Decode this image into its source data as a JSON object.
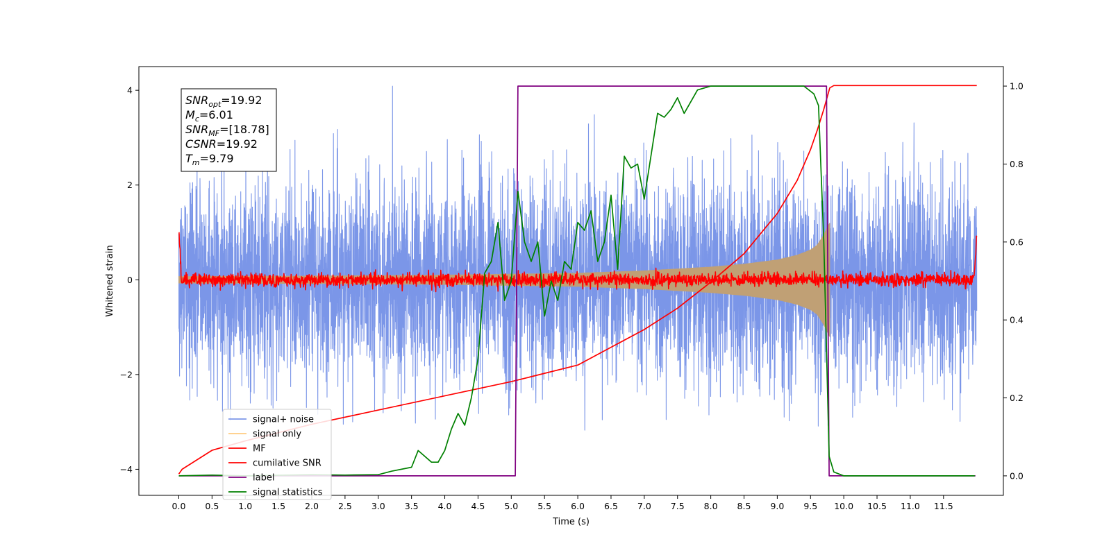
{
  "chart_data": {
    "type": "line",
    "title": "",
    "xlabel": "Time (s)",
    "ylabel": "Whitened strain",
    "xlim": [
      -0.6,
      12.4
    ],
    "ylim": [
      -4.55,
      4.5
    ],
    "y2lim": [
      -0.05,
      1.05
    ],
    "x_ticks": [
      "0.0",
      "0.5",
      "1.0",
      "1.5",
      "2.0",
      "2.5",
      "3.0",
      "3.5",
      "4.0",
      "4.5",
      "5.0",
      "5.5",
      "6.0",
      "6.5",
      "7.0",
      "7.5",
      "8.0",
      "8.5",
      "9.0",
      "9.5",
      "10.0",
      "10.5",
      "11.0",
      "11.5"
    ],
    "y_ticks": [
      -4,
      -2,
      0,
      2,
      4
    ],
    "y2_ticks": [
      "0.0",
      "0.2",
      "0.4",
      "0.6",
      "0.8",
      "1.0"
    ],
    "grid": false,
    "legend_position": "lower-left",
    "info_box": [
      {
        "sym": "SNR",
        "sub": "opt",
        "val": "=19.92"
      },
      {
        "sym": "M",
        "sub": "c",
        "val": "=6.01"
      },
      {
        "sym": "SNR",
        "sub": "MF",
        "val": "=[18.78]"
      },
      {
        "sym": "CSNR",
        "sub": "",
        "val": "=19.92"
      },
      {
        "sym": "T",
        "sub": "m",
        "val": "=9.79"
      }
    ],
    "series": [
      {
        "name": "signal+ noise",
        "color": "#7b96e8",
        "axis": "left",
        "kind": "noise",
        "t_start": 0.0,
        "t_end": 12.0,
        "envelope": [
          -3.2,
          4.1
        ]
      },
      {
        "name": "signal only",
        "color": "#c0a075",
        "legend_color": "#ffcc80",
        "axis": "left",
        "kind": "chirp",
        "t_start": 0.0,
        "t_merge": 9.79,
        "amplitude": {
          "t": [
            0.0,
            2.0,
            4.0,
            6.0,
            7.0,
            8.0,
            8.5,
            9.0,
            9.3,
            9.5,
            9.6,
            9.7,
            9.75,
            9.79
          ],
          "a": [
            0.07,
            0.08,
            0.1,
            0.14,
            0.19,
            0.27,
            0.33,
            0.42,
            0.52,
            0.63,
            0.73,
            0.95,
            1.1,
            1.2
          ]
        }
      },
      {
        "name": "MF",
        "color": "#ff0000",
        "axis": "left",
        "kind": "mf",
        "t_start": 0.0,
        "t_end": 12.0,
        "edge_value": 1.0,
        "noise_amplitude": 0.07
      },
      {
        "name": "cumilative SNR",
        "color": "#ff0000",
        "axis": "left",
        "x": [
          0.0,
          0.05,
          0.5,
          1.0,
          2.0,
          3.0,
          4.0,
          5.0,
          6.0,
          7.0,
          7.5,
          8.0,
          8.5,
          9.0,
          9.3,
          9.5,
          9.6,
          9.7,
          9.79,
          9.85,
          12.0
        ],
        "y": [
          -4.1,
          -4.0,
          -3.6,
          -3.4,
          -3.05,
          -2.75,
          -2.45,
          -2.15,
          -1.8,
          -1.05,
          -0.6,
          -0.05,
          0.55,
          1.4,
          2.1,
          2.75,
          3.15,
          3.6,
          4.05,
          4.1,
          4.1
        ]
      },
      {
        "name": "label",
        "color": "#800080",
        "axis": "right",
        "x": [
          0.0,
          5.06,
          5.1,
          9.74,
          9.78,
          11.98
        ],
        "y": [
          0.0,
          0.0,
          1.0,
          1.0,
          0.0,
          0.0
        ]
      },
      {
        "name": "signal statistics",
        "color": "#008000",
        "axis": "right",
        "x": [
          0.0,
          0.5,
          1.0,
          2.0,
          2.5,
          3.0,
          3.2,
          3.5,
          3.6,
          3.8,
          3.9,
          4.0,
          4.1,
          4.2,
          4.3,
          4.4,
          4.5,
          4.6,
          4.7,
          4.8,
          4.9,
          5.0,
          5.1,
          5.2,
          5.3,
          5.4,
          5.5,
          5.6,
          5.7,
          5.8,
          5.9,
          6.0,
          6.1,
          6.2,
          6.3,
          6.4,
          6.5,
          6.6,
          6.7,
          6.8,
          6.9,
          7.0,
          7.1,
          7.2,
          7.3,
          7.4,
          7.5,
          7.6,
          7.7,
          7.8,
          8.0,
          8.3,
          8.6,
          9.0,
          9.4,
          9.55,
          9.62,
          9.7,
          9.78,
          9.85,
          10.0,
          11.0,
          11.97
        ],
        "y": [
          0.0,
          0.002,
          0.0,
          0.003,
          0.002,
          0.003,
          0.012,
          0.022,
          0.065,
          0.035,
          0.035,
          0.065,
          0.12,
          0.16,
          0.13,
          0.2,
          0.3,
          0.52,
          0.55,
          0.65,
          0.45,
          0.5,
          0.73,
          0.6,
          0.55,
          0.6,
          0.41,
          0.5,
          0.45,
          0.55,
          0.53,
          0.65,
          0.63,
          0.68,
          0.55,
          0.6,
          0.72,
          0.53,
          0.82,
          0.79,
          0.8,
          0.71,
          0.82,
          0.93,
          0.92,
          0.94,
          0.97,
          0.93,
          0.96,
          0.99,
          1.0,
          1.0,
          1.0,
          1.0,
          1.0,
          0.98,
          0.95,
          0.6,
          0.05,
          0.01,
          0.0,
          0.0,
          0.0
        ]
      }
    ]
  }
}
